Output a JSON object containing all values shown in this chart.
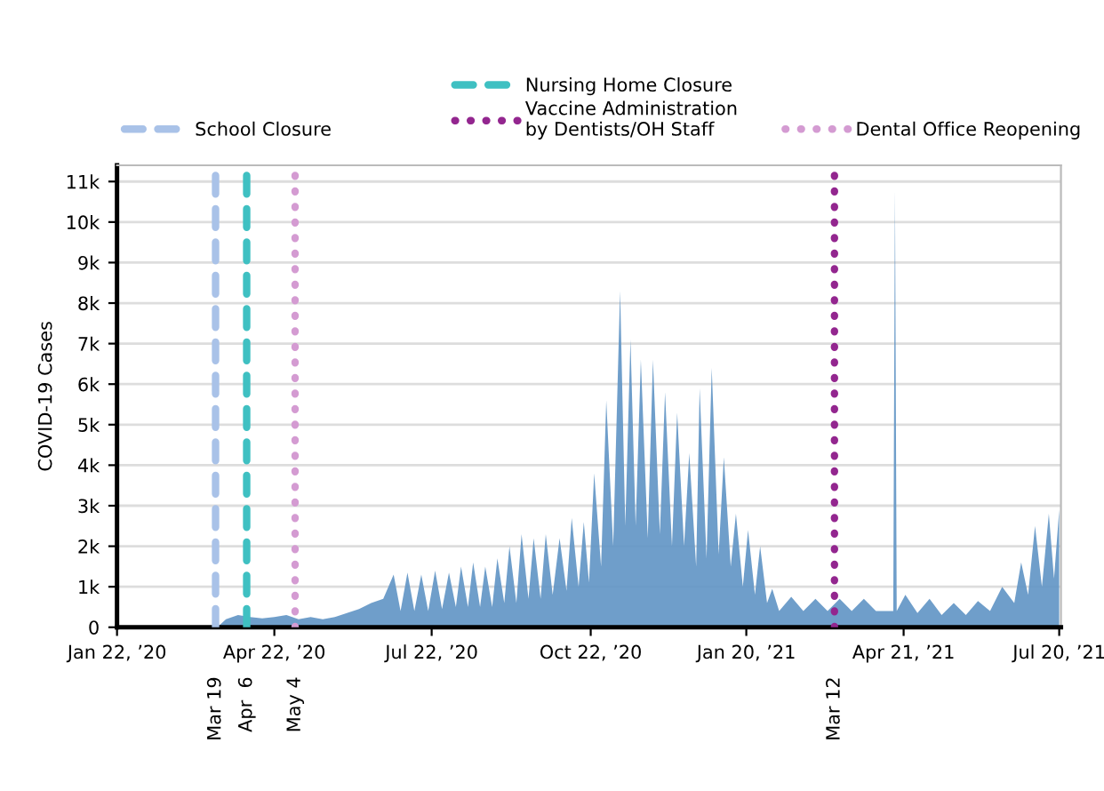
{
  "chart_data": {
    "type": "area",
    "ylabel": "COVID-19 Cases",
    "x": [
      "2020-03-20",
      "2020-03-25",
      "2020-04-01",
      "2020-04-08",
      "2020-04-15",
      "2020-04-22",
      "2020-04-29",
      "2020-05-06",
      "2020-05-13",
      "2020-05-20",
      "2020-05-27",
      "2020-06-03",
      "2020-06-10",
      "2020-06-17",
      "2020-06-24",
      "2020-06-30",
      "2020-07-04",
      "2020-07-08",
      "2020-07-12",
      "2020-07-16",
      "2020-07-20",
      "2020-07-24",
      "2020-07-28",
      "2020-08-01",
      "2020-08-05",
      "2020-08-08",
      "2020-08-12",
      "2020-08-15",
      "2020-08-19",
      "2020-08-22",
      "2020-08-26",
      "2020-08-29",
      "2020-09-02",
      "2020-09-05",
      "2020-09-09",
      "2020-09-12",
      "2020-09-16",
      "2020-09-19",
      "2020-09-23",
      "2020-09-26",
      "2020-09-30",
      "2020-10-04",
      "2020-10-08",
      "2020-10-11",
      "2020-10-15",
      "2020-10-18",
      "2020-10-21",
      "2020-10-24",
      "2020-10-28",
      "2020-10-31",
      "2020-11-04",
      "2020-11-08",
      "2020-11-11",
      "2020-11-14",
      "2020-11-17",
      "2020-11-20",
      "2020-11-24",
      "2020-11-27",
      "2020-12-01",
      "2020-12-04",
      "2020-12-08",
      "2020-12-11",
      "2020-12-15",
      "2020-12-18",
      "2020-12-22",
      "2020-12-24",
      "2020-12-28",
      "2020-12-31",
      "2021-01-04",
      "2021-01-07",
      "2021-01-11",
      "2021-01-14",
      "2021-01-18",
      "2021-01-21",
      "2021-01-25",
      "2021-01-28",
      "2021-02-01",
      "2021-02-04",
      "2021-02-08",
      "2021-02-15",
      "2021-02-22",
      "2021-03-01",
      "2021-03-08",
      "2021-03-15",
      "2021-03-22",
      "2021-03-29",
      "2021-04-05",
      "2021-04-15",
      "2021-04-16",
      "2021-04-17",
      "2021-04-22",
      "2021-04-29",
      "2021-05-06",
      "2021-05-13",
      "2021-05-20",
      "2021-05-27",
      "2021-06-03",
      "2021-06-10",
      "2021-06-17",
      "2021-06-24",
      "2021-06-28",
      "2021-07-02",
      "2021-07-06",
      "2021-07-10",
      "2021-07-14",
      "2021-07-17",
      "2021-07-20"
    ],
    "series": [
      {
        "color": "#5f93c4",
        "values": [
          0,
          200,
          300,
          250,
          220,
          250,
          300,
          200,
          250,
          200,
          250,
          350,
          450,
          600,
          700,
          1300,
          400,
          1350,
          400,
          1300,
          400,
          1400,
          450,
          1350,
          500,
          1500,
          500,
          1600,
          500,
          1500,
          500,
          1700,
          600,
          2000,
          600,
          2300,
          700,
          2200,
          700,
          2300,
          800,
          2200,
          900,
          2700,
          1000,
          2600,
          1100,
          3800,
          1500,
          5600,
          2000,
          8300,
          2500,
          7100,
          2500,
          6600,
          2200,
          6600,
          2300,
          5800,
          2000,
          5300,
          2000,
          4300,
          1500,
          5900,
          1700,
          6400,
          1800,
          4200,
          1500,
          2800,
          1000,
          2400,
          800,
          2000,
          600,
          950,
          400,
          750,
          400,
          700,
          400,
          700,
          400,
          700,
          400,
          400,
          10800,
          400,
          800,
          350,
          700,
          300,
          600,
          300,
          650,
          400,
          1000,
          600,
          1600,
          800,
          2500,
          1000,
          2800,
          1200,
          2900
        ]
      }
    ],
    "xlim": [
      "2020-01-22",
      "2021-07-21"
    ],
    "xticks": [
      {
        "value": "2020-01-22",
        "label": "Jan 22, ’20"
      },
      {
        "value": "2020-04-22",
        "label": "Apr 22, ’20"
      },
      {
        "value": "2020-07-22",
        "label": "Jul 22, ’20"
      },
      {
        "value": "2020-10-22",
        "label": "Oct 22, ’20"
      },
      {
        "value": "2021-01-20",
        "label": "Jan 20, ’21"
      },
      {
        "value": "2021-04-21",
        "label": "Apr 21, ’21"
      },
      {
        "value": "2021-07-20",
        "label": "Jul 20, ’21"
      }
    ],
    "ylim": [
      0,
      11400
    ],
    "yticks": [
      0,
      {
        "value": 1000,
        "label": "1k"
      },
      {
        "value": 2000,
        "label": "2k"
      },
      {
        "value": 3000,
        "label": "3k"
      },
      {
        "value": 4000,
        "label": "4k"
      },
      {
        "value": 5000,
        "label": "5k"
      },
      {
        "value": 6000,
        "label": "6k"
      },
      {
        "value": 7000,
        "label": "7k"
      },
      {
        "value": 8000,
        "label": "8k"
      },
      {
        "value": 9000,
        "label": "9k"
      },
      {
        "value": 10000,
        "label": "10k"
      },
      {
        "value": 11000,
        "label": "11k"
      }
    ],
    "ref_lines": [
      {
        "axis": "x",
        "value": "2020-03-19",
        "label": "School Closure",
        "color": "#a9c2e8",
        "line_style": "dashed"
      },
      {
        "axis": "x",
        "value": "2020-04-06",
        "label": "Nursing Home Closure",
        "color": "#3fc0c2",
        "line_style": "dashed"
      },
      {
        "axis": "x",
        "value": "2020-05-04",
        "label": "Dental Office Reopening",
        "color": "#d49bd2",
        "line_style": "dotted"
      },
      {
        "axis": "x",
        "value": "2021-03-12",
        "label": "Vaccine Administration\nby Dentists/OH Staff",
        "color": "#93268f",
        "line_style": "dotted"
      }
    ],
    "annotations": [
      {
        "text": "Mar 19",
        "x": "2020-03-19",
        "y": 0
      },
      {
        "text": "Apr  6",
        "x": "2020-04-06",
        "y": 0
      },
      {
        "text": "May 4",
        "x": "2020-05-04",
        "y": 0
      },
      {
        "text": "Mar 12",
        "x": "2021-03-12",
        "y": 0
      }
    ],
    "grid": "y",
    "legend": "top"
  }
}
